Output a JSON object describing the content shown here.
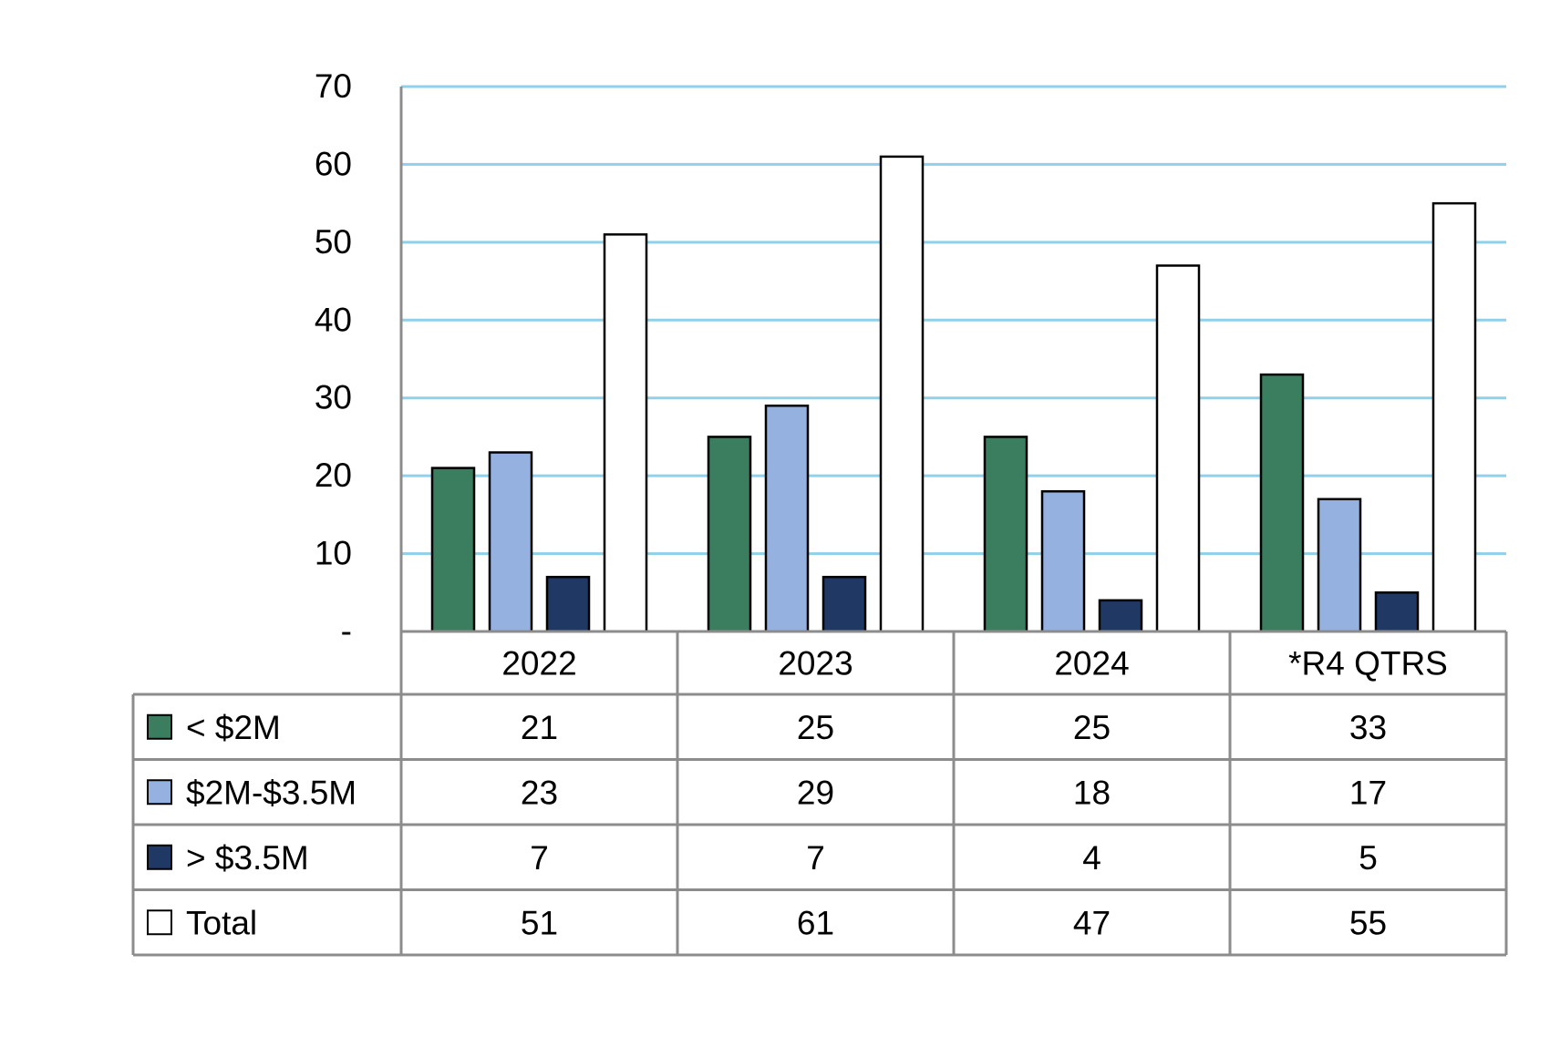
{
  "chart_data": {
    "type": "bar",
    "categories": [
      "2022",
      "2023",
      "2024",
      "*R4 QTRS"
    ],
    "series": [
      {
        "name": "< $2M",
        "values": [
          21,
          25,
          25,
          33
        ],
        "color": "#3b7d5f"
      },
      {
        "name": "$2M-$3.5M",
        "values": [
          23,
          29,
          18,
          17
        ],
        "color": "#94b1df"
      },
      {
        "name": "> $3.5M",
        "values": [
          7,
          7,
          4,
          5
        ],
        "color": "#203864"
      },
      {
        "name": "Total",
        "values": [
          51,
          61,
          47,
          55
        ],
        "color": "#ffffff"
      }
    ],
    "ylim": [
      0,
      70
    ],
    "yticks": [
      {
        "value": 0,
        "label": "-"
      },
      {
        "value": 10,
        "label": "10"
      },
      {
        "value": 20,
        "label": "20"
      },
      {
        "value": 30,
        "label": "30"
      },
      {
        "value": 40,
        "label": "40"
      },
      {
        "value": 50,
        "label": "50"
      },
      {
        "value": 60,
        "label": "60"
      },
      {
        "value": 70,
        "label": "70"
      }
    ],
    "grid": true,
    "data_table": true,
    "legend_placement": "data-table"
  },
  "colors": {
    "gridline": "#8fd0ea",
    "table_border": "#8c8c8c",
    "bar_outline": "#000000"
  }
}
